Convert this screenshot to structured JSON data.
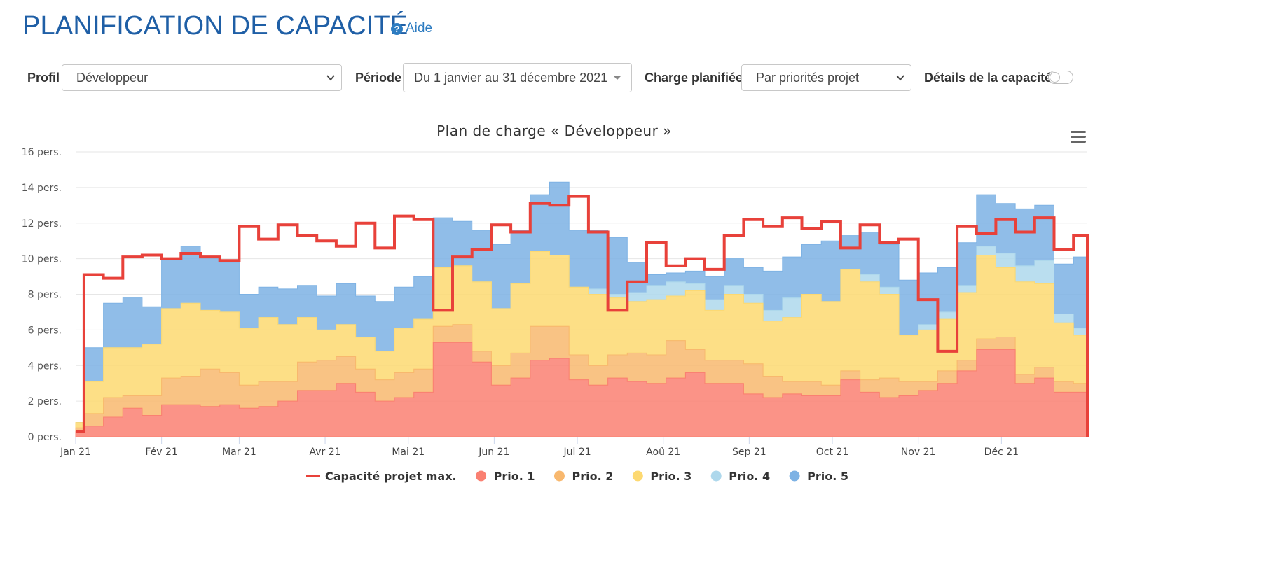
{
  "header": {
    "title": "PLANIFICATION DE CAPACITÉ",
    "help_label": "Aide"
  },
  "filters": {
    "profil_label": "Profil",
    "profil_value": "Développeur",
    "periode_label": "Période",
    "periode_value": "Du 1 janvier au 31 décembre 2021",
    "charge_label": "Charge planifiée",
    "charge_value": "Par priorités projet",
    "details_label": "Détails de la capacité",
    "details_enabled": false
  },
  "colors": {
    "title": "#1f5fa6",
    "capacity_line": "#e8413a",
    "prio1": "#fa8072",
    "prio2": "#f8b86e",
    "prio3": "#fdd971",
    "prio4": "#aed8ec",
    "prio5": "#7db2e4"
  },
  "chart_data": {
    "type": "area",
    "step": true,
    "stacked": true,
    "title": "Plan de charge « Développeur »",
    "y_tick_labels": [
      "0 pers.",
      "2 pers.",
      "4 pers.",
      "6 pers.",
      "8 pers.",
      "10 pers.",
      "12 pers.",
      "14 pers.",
      "16 pers."
    ],
    "ylim": [
      0,
      16
    ],
    "x_tick_labels": [
      "Jan 21",
      "Fév 21",
      "Mar 21",
      "Avr 21",
      "Mai 21",
      "Jun 21",
      "Jul 21",
      "Aoû 21",
      "Sep 21",
      "Oct 21",
      "Nov 21",
      "Déc 21"
    ],
    "x_tick_days": [
      0,
      31,
      59,
      90,
      120,
      151,
      181,
      212,
      243,
      273,
      304,
      334
    ],
    "x_range_days": [
      0,
      365
    ],
    "grid": true,
    "legend_position": "bottom",
    "periods_start_day": [
      0,
      3,
      10,
      17,
      24,
      31,
      38,
      45,
      52,
      59,
      66,
      73,
      80,
      87,
      94,
      101,
      108,
      115,
      122,
      129,
      136,
      143,
      150,
      157,
      164,
      171,
      178,
      185,
      192,
      199,
      206,
      213,
      220,
      227,
      234,
      241,
      248,
      255,
      262,
      269,
      276,
      283,
      290,
      297,
      304,
      311,
      318,
      325,
      332,
      339,
      346,
      353,
      360
    ],
    "series": [
      {
        "name": "Prio. 1",
        "color": "#fa8072",
        "values": [
          0.3,
          0.6,
          1.1,
          1.6,
          1.2,
          1.8,
          1.8,
          1.7,
          1.8,
          1.6,
          1.7,
          2.0,
          2.6,
          2.6,
          3.0,
          2.5,
          2.0,
          2.2,
          2.5,
          5.3,
          5.3,
          4.2,
          2.9,
          3.3,
          4.3,
          4.4,
          3.2,
          2.9,
          3.3,
          3.1,
          3.0,
          3.3,
          3.6,
          3.0,
          3.0,
          2.4,
          2.2,
          2.4,
          2.3,
          2.3,
          3.2,
          2.5,
          2.2,
          2.3,
          2.6,
          3.0,
          3.7,
          4.9,
          4.9,
          3.0,
          3.3,
          2.5,
          2.5
        ]
      },
      {
        "name": "Prio. 2",
        "color": "#f8b86e",
        "values": [
          0.2,
          0.7,
          1.1,
          0.7,
          1.1,
          1.5,
          1.6,
          2.1,
          1.8,
          1.3,
          1.4,
          1.1,
          1.6,
          1.7,
          1.5,
          1.3,
          1.2,
          1.4,
          1.3,
          0.9,
          1.0,
          0.6,
          1.1,
          1.4,
          1.9,
          1.8,
          1.4,
          1.1,
          1.3,
          1.6,
          1.6,
          2.1,
          1.3,
          1.3,
          1.3,
          1.7,
          1.2,
          0.7,
          0.8,
          0.6,
          0.5,
          0.7,
          1.1,
          0.8,
          0.5,
          0.7,
          0.6,
          0.6,
          0.7,
          0.5,
          0.6,
          0.6,
          0.5
        ]
      },
      {
        "name": "Prio. 3",
        "color": "#fdd971",
        "values": [
          0.3,
          1.8,
          2.8,
          2.7,
          2.9,
          3.9,
          4.1,
          3.3,
          3.4,
          3.2,
          3.6,
          3.2,
          2.5,
          1.7,
          1.8,
          1.8,
          1.6,
          2.5,
          2.8,
          3.3,
          3.3,
          3.9,
          3.2,
          3.9,
          4.2,
          4.0,
          3.8,
          4.0,
          3.2,
          2.9,
          3.1,
          2.5,
          3.3,
          2.8,
          3.7,
          3.4,
          3.1,
          3.6,
          4.9,
          4.7,
          5.7,
          5.5,
          4.7,
          2.6,
          2.9,
          2.9,
          3.8,
          4.7,
          3.9,
          5.2,
          4.7,
          3.3,
          2.7
        ]
      },
      {
        "name": "Prio. 4",
        "color": "#aed8ec",
        "values": [
          0,
          0,
          0,
          0,
          0,
          0,
          0,
          0,
          0,
          0,
          0,
          0,
          0,
          0,
          0,
          0,
          0,
          0,
          0,
          0,
          0,
          0,
          0,
          0,
          0,
          0,
          0,
          0.3,
          0.2,
          0.5,
          0.8,
          0.8,
          0.4,
          0.6,
          0.5,
          0.5,
          0.6,
          1.1,
          0,
          0,
          0,
          0.4,
          0.4,
          0,
          0.3,
          0.4,
          0.4,
          0.5,
          0.8,
          0.9,
          1.3,
          0.5,
          0.4
        ]
      },
      {
        "name": "Prio. 5",
        "color": "#7db2e4",
        "values": [
          0,
          1.9,
          2.5,
          2.8,
          2.1,
          2.8,
          3.2,
          3.0,
          2.8,
          1.9,
          1.7,
          2.0,
          1.8,
          1.9,
          2.3,
          2.3,
          2.8,
          2.3,
          2.4,
          2.8,
          2.5,
          2.9,
          3.6,
          3.0,
          3.2,
          4.1,
          3.2,
          3.3,
          3.2,
          1.7,
          0.6,
          0.5,
          0.7,
          1.3,
          1.5,
          1.5,
          2.2,
          2.3,
          2.8,
          3.4,
          1.9,
          2.4,
          2.4,
          3.1,
          2.9,
          2.5,
          2.4,
          2.9,
          2.8,
          3.2,
          3.1,
          2.8,
          4.0
        ]
      },
      {
        "name": "Capacité projet max.",
        "color": "#e8413a",
        "type": "line",
        "values": [
          0.3,
          9.1,
          8.9,
          10.1,
          10.2,
          10.0,
          10.3,
          10.1,
          9.9,
          11.8,
          11.1,
          11.9,
          11.3,
          11.0,
          10.7,
          12.0,
          10.6,
          12.4,
          12.2,
          7.1,
          10.1,
          10.5,
          11.9,
          11.5,
          13.1,
          13.0,
          13.5,
          11.5,
          7.1,
          8.7,
          10.9,
          9.6,
          10.0,
          9.4,
          11.3,
          12.2,
          11.8,
          12.3,
          11.7,
          12.1,
          10.6,
          11.9,
          10.9,
          11.1,
          7.7,
          4.8,
          11.8,
          11.4,
          12.2,
          11.5,
          12.3,
          10.5,
          11.3
        ]
      }
    ]
  }
}
